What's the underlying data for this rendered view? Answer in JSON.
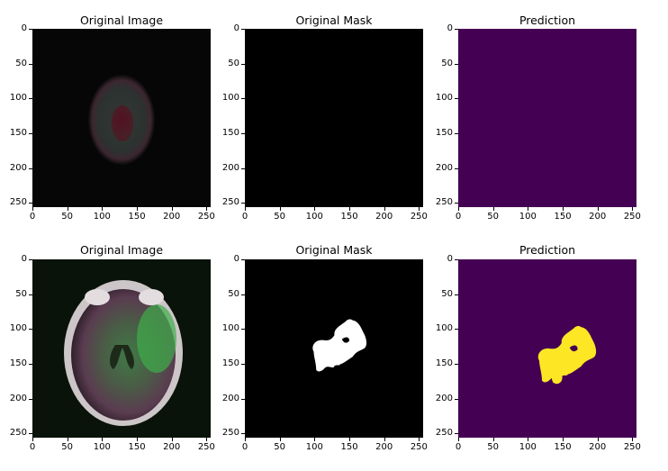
{
  "panels": [
    {
      "title": "Original Image",
      "kind": "mri-faded"
    },
    {
      "title": "Original Mask",
      "kind": "mask-empty"
    },
    {
      "title": "Prediction",
      "kind": "pred-empty"
    },
    {
      "title": "Original Image",
      "kind": "mri-brain"
    },
    {
      "title": "Original Mask",
      "kind": "mask-lesion"
    },
    {
      "title": "Prediction",
      "kind": "pred-lesion"
    }
  ],
  "axis": {
    "y_ticks": [
      "0",
      "50",
      "100",
      "150",
      "200",
      "250"
    ],
    "x_ticks": [
      "0",
      "50",
      "100",
      "150",
      "200",
      "250"
    ],
    "tick_values": [
      0,
      50,
      100,
      150,
      200,
      250
    ],
    "range": [
      0,
      256
    ]
  },
  "colors": {
    "background": "#ffffff",
    "mask_bg": "#000000",
    "mask_fg": "#ffffff",
    "pred_bg": "#440154",
    "pred_fg": "#fde725"
  }
}
